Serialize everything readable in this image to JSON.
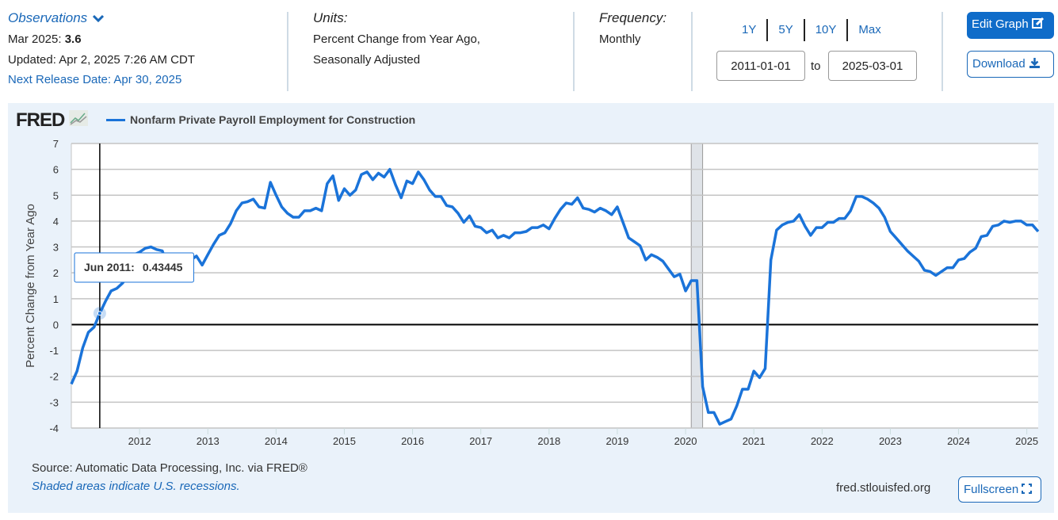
{
  "header": {
    "observations_label": "Observations",
    "latest_label": "Mar 2025:",
    "latest_value": "3.6",
    "updated": "Updated: Apr 2, 2025 7:26 AM CDT",
    "next_release": "Next Release Date: Apr 30, 2025",
    "units_label": "Units:",
    "units_line1": "Percent Change from Year Ago,",
    "units_line2": "Seasonally Adjusted",
    "frequency_label": "Frequency:",
    "frequency_value": "Monthly",
    "ranges": [
      "1Y",
      "5Y",
      "10Y",
      "Max"
    ],
    "start_date": "2011-01-01",
    "to_label": "to",
    "end_date": "2025-03-01",
    "edit_graph": "Edit Graph",
    "download": "Download"
  },
  "footer": {
    "source": "Source: Automatic Data Processing, Inc. via FRED®",
    "recession_note": "Shaded areas indicate U.S. recessions.",
    "site": "fred.stlouisfed.org",
    "fullscreen": "Fullscreen"
  },
  "colors": {
    "series": "#1a73d9",
    "accent": "#0f6cc9",
    "panel": "#eaf2fa",
    "recession": "#dfe3e8"
  },
  "logo_text": "FRED",
  "chart_data": {
    "type": "line",
    "title": "",
    "legend": "Nonfarm Private Payroll Employment for Construction",
    "legend_position": "top-left",
    "ylabel": "Percent Change from Year Ago",
    "xlabel": "",
    "ylim": [
      -4,
      7
    ],
    "yticks": [
      -4,
      -3,
      -2,
      -1,
      0,
      1,
      2,
      3,
      4,
      5,
      6,
      7
    ],
    "xticks": [
      "2012",
      "2013",
      "2014",
      "2015",
      "2016",
      "2017",
      "2018",
      "2019",
      "2020",
      "2021",
      "2022",
      "2023",
      "2024",
      "2025"
    ],
    "x_start": "2011-01",
    "x_end": "2025-03",
    "frequency": "monthly",
    "grid": true,
    "recessions": [
      [
        "2020-02",
        "2020-04"
      ]
    ],
    "tooltip": {
      "label": "Jun 2011:",
      "value": "0.43445",
      "x": "2011-06"
    },
    "series": [
      {
        "name": "Nonfarm Private Payroll Employment for Construction",
        "values": [
          -2.3,
          -1.8,
          -0.9,
          -0.3,
          -0.1,
          0.43445,
          0.9,
          1.3,
          1.4,
          1.6,
          1.9,
          2.7,
          2.8,
          2.95,
          3.0,
          2.9,
          2.85,
          2.2,
          2.05,
          2.1,
          2.3,
          2.5,
          2.65,
          2.3,
          2.7,
          3.1,
          3.45,
          3.55,
          3.9,
          4.4,
          4.7,
          4.75,
          4.85,
          4.55,
          4.5,
          5.5,
          5.0,
          4.55,
          4.3,
          4.15,
          4.15,
          4.4,
          4.4,
          4.5,
          4.4,
          5.45,
          5.75,
          4.8,
          5.25,
          5.0,
          5.2,
          5.8,
          5.9,
          5.6,
          5.85,
          5.7,
          6.0,
          5.4,
          4.9,
          5.55,
          5.45,
          5.9,
          5.6,
          5.2,
          4.95,
          4.95,
          4.6,
          4.55,
          4.3,
          3.95,
          4.2,
          3.8,
          3.75,
          3.55,
          3.65,
          3.35,
          3.45,
          3.35,
          3.55,
          3.55,
          3.6,
          3.75,
          3.75,
          3.85,
          3.7,
          4.1,
          4.45,
          4.7,
          4.65,
          4.9,
          4.5,
          4.45,
          4.35,
          4.5,
          4.4,
          4.25,
          4.55,
          3.95,
          3.35,
          3.2,
          3.05,
          2.5,
          2.7,
          2.6,
          2.45,
          2.15,
          1.85,
          1.95,
          1.3,
          1.7,
          1.7,
          -2.4,
          -3.4,
          -3.4,
          -3.85,
          -3.75,
          -3.65,
          -3.15,
          -2.5,
          -2.5,
          -1.8,
          -2.05,
          -1.7,
          2.5,
          3.65,
          3.85,
          3.95,
          4.0,
          4.25,
          3.8,
          3.45,
          3.75,
          3.75,
          3.95,
          3.95,
          4.1,
          4.1,
          4.4,
          4.95,
          4.95,
          4.85,
          4.7,
          4.5,
          4.15,
          3.6,
          3.35,
          3.1,
          2.85,
          2.65,
          2.45,
          2.1,
          2.05,
          1.9,
          2.05,
          2.2,
          2.2,
          2.5,
          2.55,
          2.8,
          2.95,
          3.4,
          3.45,
          3.8,
          3.85,
          4.0,
          3.95,
          4.0,
          4.0,
          3.85,
          3.85,
          3.6
        ]
      }
    ]
  }
}
